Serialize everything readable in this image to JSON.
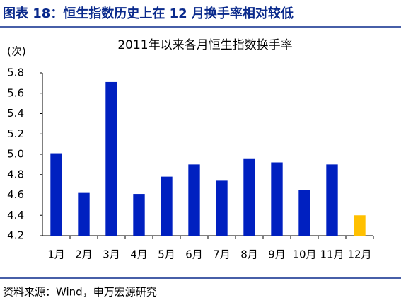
{
  "header": {
    "title": "图表 18：恒生指数历史上在 12 月换手率相对较低"
  },
  "chart_data": {
    "type": "bar",
    "title": "2011年以来各月恒生指数换手率",
    "y_label": "(次)",
    "categories": [
      "1月",
      "2月",
      "3月",
      "4月",
      "5月",
      "6月",
      "7月",
      "8月",
      "9月",
      "10月",
      "11月",
      "12月"
    ],
    "values": [
      5.01,
      4.62,
      5.71,
      4.61,
      4.78,
      4.9,
      4.74,
      4.96,
      4.92,
      4.65,
      4.9,
      4.4
    ],
    "colors": [
      "#0020c0",
      "#0020c0",
      "#0020c0",
      "#0020c0",
      "#0020c0",
      "#0020c0",
      "#0020c0",
      "#0020c0",
      "#0020c0",
      "#0020c0",
      "#0020c0",
      "#ffc000"
    ],
    "ylim": [
      4.2,
      5.8
    ],
    "yticks": [
      4.2,
      4.4,
      4.6,
      4.8,
      {
        "value": 5,
        "label": "5.0"
      },
      5.2,
      5.4,
      5.6,
      5.8
    ],
    "grid": false
  },
  "footer": {
    "source": "资料来源：Wind，申万宏源研究"
  }
}
